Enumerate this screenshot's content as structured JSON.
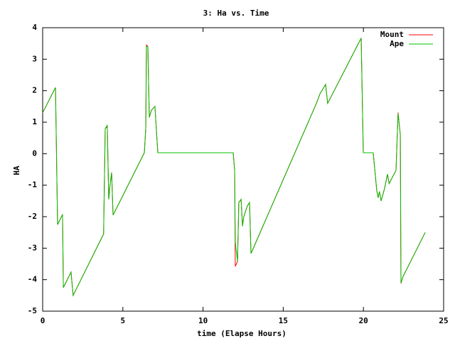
{
  "chart_data": {
    "type": "line",
    "title": "3: Ha vs. Time",
    "xlabel": "time (Elapse Hours)",
    "ylabel": "HA",
    "x": [
      0,
      0.8,
      0.93,
      1.24,
      1.29,
      1.77,
      1.9,
      3.8,
      3.9,
      4.03,
      4.12,
      4.2,
      4.3,
      4.39,
      6.34,
      6.43,
      6.47,
      6.56,
      6.65,
      6.78,
      7.0,
      7.18,
      11.88,
      11.97,
      12.01,
      12.15,
      12.23,
      12.37,
      12.46,
      12.54,
      12.77,
      12.9,
      12.99,
      17.07,
      17.29,
      17.64,
      17.77,
      19.86,
      19.99,
      20.61,
      20.83,
      20.92,
      21.0,
      21.1,
      21.32,
      21.5,
      21.6,
      22.03,
      22.16,
      22.3,
      22.34,
      22.47,
      23.85
    ],
    "series": [
      {
        "name": "Mount",
        "color": "#ff0000",
        "values": [
          1.3,
          2.1,
          -2.25,
          -1.93,
          -4.25,
          -3.76,
          -4.5,
          -2.55,
          0.8,
          0.85,
          -1.45,
          -1.0,
          -0.6,
          -1.95,
          0.03,
          0.82,
          3.45,
          3.4,
          1.15,
          1.38,
          1.5,
          0.03,
          0.03,
          -0.53,
          -3.58,
          -3.42,
          -1.55,
          -1.45,
          -2.3,
          -2.0,
          -1.65,
          -1.55,
          -3.17,
          1.6,
          1.9,
          2.2,
          1.6,
          3.67,
          0.03,
          0.03,
          -1.17,
          -1.4,
          -1.2,
          -1.5,
          -1.1,
          -0.65,
          -0.95,
          -0.53,
          1.3,
          0.6,
          -4.12,
          -3.9,
          -2.5
        ]
      },
      {
        "name": "Ape",
        "color": "#00c000",
        "values": [
          1.3,
          2.1,
          -2.25,
          -1.93,
          -4.25,
          -3.76,
          -4.5,
          -2.55,
          0.8,
          0.9,
          -1.45,
          -1.0,
          -0.6,
          -1.95,
          0.03,
          0.82,
          3.4,
          3.4,
          1.15,
          1.38,
          1.5,
          0.03,
          0.03,
          -0.53,
          -2.8,
          -3.42,
          -1.55,
          -1.45,
          -2.3,
          -2.0,
          -1.65,
          -1.55,
          -3.17,
          1.6,
          1.9,
          2.2,
          1.6,
          3.67,
          0.03,
          0.03,
          -1.17,
          -1.4,
          -1.2,
          -1.5,
          -1.1,
          -0.65,
          -0.95,
          -0.53,
          1.27,
          0.6,
          -4.1,
          -3.9,
          -2.5
        ]
      }
    ],
    "xlim": [
      0,
      25
    ],
    "xticks": [
      0,
      5,
      10,
      15,
      20,
      25
    ],
    "ylim": [
      -5,
      4
    ],
    "yticks": [
      -5,
      -4,
      -3,
      -2,
      -1,
      0,
      1,
      2,
      3,
      4
    ],
    "legend": "upper-right",
    "grid": false
  }
}
